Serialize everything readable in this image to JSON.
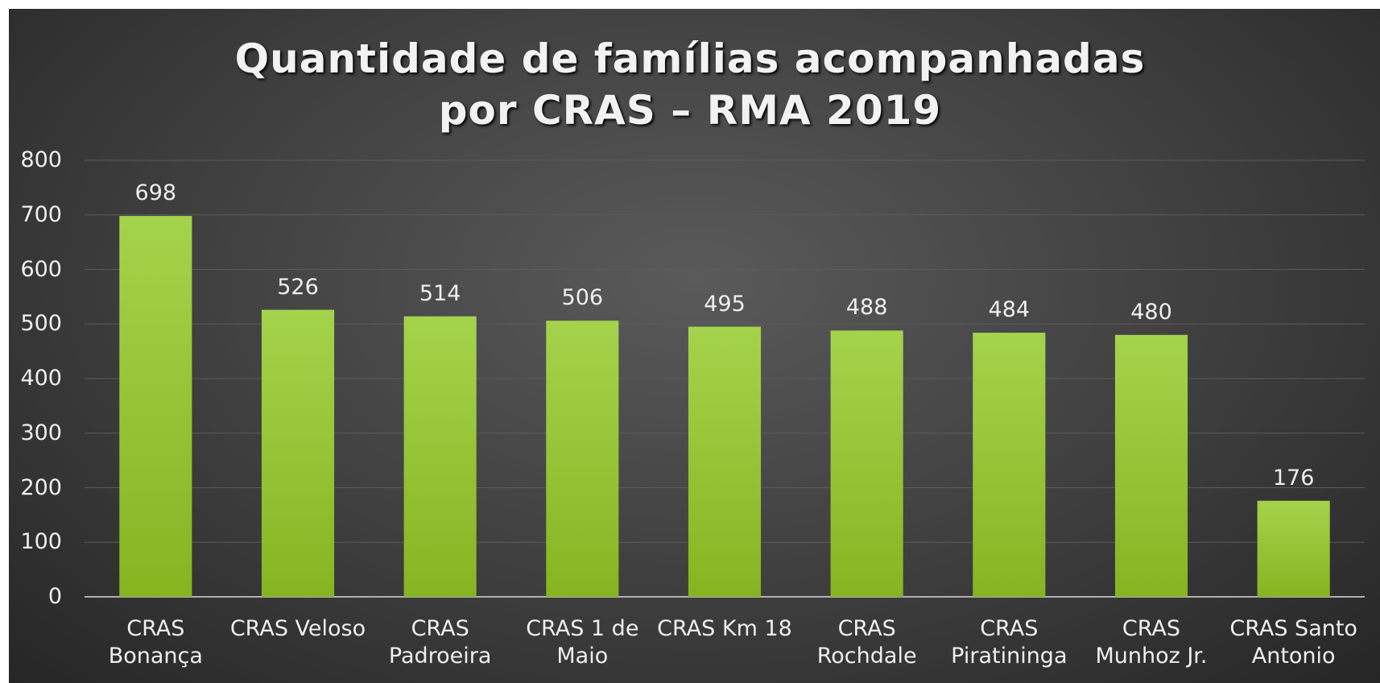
{
  "chart_data": {
    "type": "bar",
    "title": "Quantidade de famílias acompanhadas por CRAS – RMA 2019",
    "categories": [
      "CRAS Bonança",
      "CRAS Veloso",
      "CRAS Padroeira",
      "CRAS 1 de Maio",
      "CRAS Km 18",
      "CRAS Rochdale",
      "CRAS Piratininga",
      "CRAS Munhoz Jr.",
      "CRAS Santo Antonio"
    ],
    "values": [
      698,
      526,
      514,
      506,
      495,
      488,
      484,
      480,
      176
    ],
    "color": "#95c53a",
    "ylim": [
      0,
      800
    ],
    "yticks": [
      0,
      100,
      200,
      300,
      400,
      500,
      600,
      700,
      800
    ],
    "grid": true
  }
}
